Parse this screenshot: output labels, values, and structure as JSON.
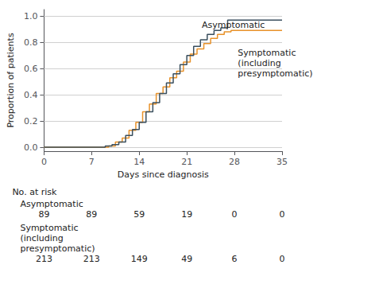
{
  "chart_data": {
    "type": "step",
    "xlabel": "Days since diagnosis",
    "ylabel": "Proportion of patients",
    "xlim": [
      0,
      35
    ],
    "ylim": [
      -0.03,
      1.05
    ],
    "xticks": [
      0,
      7,
      14,
      21,
      28,
      35
    ],
    "yticks": [
      {
        "value": 0.0,
        "label": "0.0"
      },
      0.2,
      0.4,
      0.6,
      0.8,
      {
        "value": 1.0,
        "label": "1.0"
      }
    ],
    "grid": true,
    "series": [
      {
        "color": "#3a4f5e",
        "x": [
          0,
          8.5,
          9.0,
          9.5,
          10.0,
          10.5,
          11.0,
          11.5,
          12.0,
          12.5,
          13.0,
          13.5,
          14.0,
          14.5,
          15.0,
          15.5,
          16.0,
          16.5,
          17.0,
          17.5,
          18.0,
          18.5,
          19.0,
          19.5,
          20.0,
          20.5,
          21.0,
          21.5,
          22.0,
          22.5,
          23.0,
          23.5,
          24.0,
          24.5,
          25.0,
          25.5,
          26.0,
          26.5,
          27.0,
          27.5,
          28.0,
          35
        ],
        "values": [
          0,
          0,
          0.01,
          0.01,
          0.02,
          0.02,
          0.04,
          0.04,
          0.09,
          0.09,
          0.135,
          0.135,
          0.19,
          0.19,
          0.27,
          0.27,
          0.34,
          0.34,
          0.41,
          0.41,
          0.49,
          0.49,
          0.56,
          0.56,
          0.63,
          0.63,
          0.7,
          0.7,
          0.77,
          0.77,
          0.82,
          0.82,
          0.86,
          0.86,
          0.89,
          0.89,
          0.91,
          0.91,
          0.97,
          0.97,
          0.97,
          0.97
        ]
      },
      {
        "color": "#e8922a",
        "x": [
          0,
          9.0,
          9.5,
          10.0,
          10.5,
          11.0,
          11.5,
          12.0,
          12.5,
          13.0,
          13.5,
          14.0,
          14.5,
          15.0,
          15.5,
          16.0,
          16.5,
          17.0,
          17.5,
          18.0,
          18.5,
          19.0,
          19.5,
          20.0,
          20.5,
          21.0,
          21.5,
          22.0,
          22.5,
          23.0,
          23.5,
          24.0,
          24.5,
          25.0,
          25.5,
          26.0,
          26.5,
          27.0,
          27.5,
          28.0,
          35
        ],
        "values": [
          0,
          0,
          0.01,
          0.01,
          0.04,
          0.04,
          0.07,
          0.07,
          0.13,
          0.13,
          0.19,
          0.19,
          0.27,
          0.27,
          0.33,
          0.33,
          0.41,
          0.41,
          0.46,
          0.46,
          0.53,
          0.53,
          0.58,
          0.58,
          0.65,
          0.65,
          0.71,
          0.71,
          0.75,
          0.75,
          0.79,
          0.79,
          0.83,
          0.83,
          0.86,
          0.86,
          0.88,
          0.88,
          0.89,
          0.89,
          0.89
        ]
      }
    ],
    "annotations": [
      {
        "text": "Asymptomatic",
        "x": 23.2,
        "y": 0.97
      },
      {
        "text": "Symptomatic\n(including\npresymptomatic)",
        "x": 28.5,
        "y": 0.76
      }
    ],
    "risk_table": {
      "title": "No. at risk",
      "x": [
        0,
        7,
        14,
        21,
        28,
        35
      ],
      "rows": [
        {
          "label": "Asymptomatic",
          "values": [
            89,
            89,
            59,
            19,
            0,
            0
          ]
        },
        {
          "label": "Symptomatic\n(including\npresymptomatic)",
          "values": [
            213,
            213,
            149,
            49,
            6,
            0
          ]
        }
      ]
    }
  }
}
